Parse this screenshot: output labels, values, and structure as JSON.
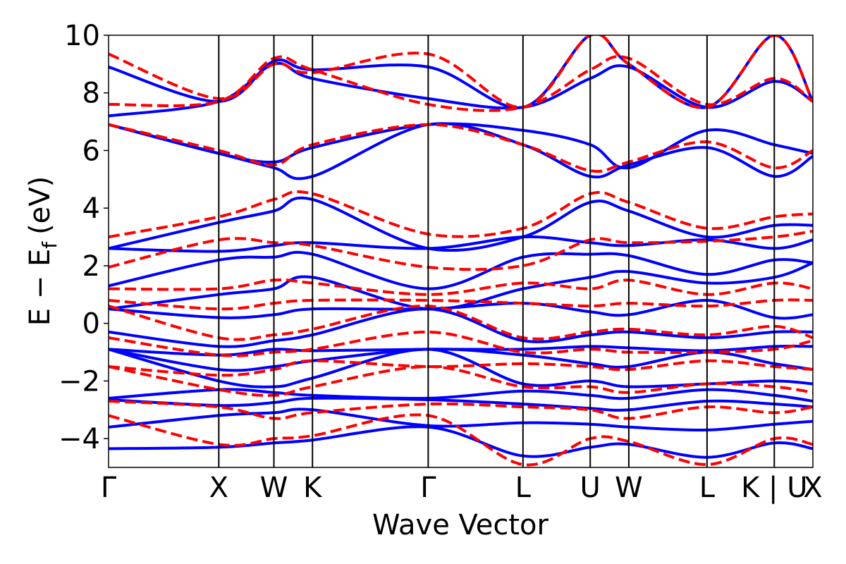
{
  "chart_data": {
    "type": "line",
    "xlabel": "Wave Vector",
    "ylabel": "E − E",
    "ylabel_sub": "f",
    "ylabel_unit": "(eV)",
    "ylim": [
      -5,
      10
    ],
    "yticks": [
      10,
      8,
      6,
      4,
      2,
      0,
      -2,
      -4
    ],
    "ytick_labels": [
      "10",
      "8",
      "6",
      "4",
      "2",
      "0",
      "−2",
      "−4"
    ],
    "kpath": [
      {
        "label": "Γ",
        "x": 0
      },
      {
        "label": "X",
        "x": 1.0
      },
      {
        "label": "W",
        "x": 1.5
      },
      {
        "label": "K",
        "x": 1.85
      },
      {
        "label": "Γ",
        "x": 2.9
      },
      {
        "label": "L",
        "x": 3.76
      },
      {
        "label": "U",
        "x": 4.37
      },
      {
        "label": "W",
        "x": 4.72
      },
      {
        "label": "L",
        "x": 5.43
      },
      {
        "label": "K | U",
        "x": 6.04
      },
      {
        "label": "X",
        "x": 6.39
      }
    ],
    "grid": false,
    "series": [
      {
        "style": "solid",
        "color": "#0000ff",
        "bands": [
          {
            "k": [
              0,
              1.0,
              1.5,
              1.85,
              2.9,
              3.76,
              4.37,
              4.72,
              5.43,
              6.04,
              6.39
            ],
            "E": [
              -4.35,
              -4.3,
              -4.15,
              -4.05,
              -3.6,
              -4.6,
              -4.3,
              -4.2,
              -4.65,
              -4.15,
              -4.35
            ]
          },
          {
            "k": [
              0,
              1.0,
              1.5,
              1.85,
              2.9,
              3.76,
              4.37,
              4.72,
              5.43,
              6.04,
              6.39
            ],
            "E": [
              -3.6,
              -3.2,
              -3.1,
              -3.0,
              -3.55,
              -3.45,
              -3.5,
              -3.6,
              -3.7,
              -3.5,
              -3.4
            ]
          },
          {
            "k": [
              0,
              1.0,
              1.5,
              1.85,
              2.9,
              3.76,
              4.37,
              4.72,
              5.43,
              6.04,
              6.39
            ],
            "E": [
              -2.65,
              -2.85,
              -2.75,
              -2.6,
              -2.65,
              -2.8,
              -2.95,
              -3.0,
              -2.7,
              -2.8,
              -2.9
            ]
          },
          {
            "k": [
              0,
              1.0,
              1.5,
              1.85,
              2.9,
              3.76,
              4.37,
              4.72,
              5.43,
              6.04,
              6.39
            ],
            "E": [
              -2.6,
              -2.3,
              -2.4,
              -2.5,
              -2.6,
              -2.35,
              -2.5,
              -2.6,
              -2.3,
              -2.5,
              -2.7
            ]
          },
          {
            "k": [
              0,
              1.0,
              1.5,
              1.85,
              2.9,
              3.76,
              4.37,
              4.72,
              5.43,
              6.04,
              6.39
            ],
            "E": [
              -0.9,
              -2.0,
              -2.2,
              -1.9,
              -0.9,
              -2.1,
              -2.0,
              -2.2,
              -2.1,
              -2.0,
              -2.1
            ]
          },
          {
            "k": [
              0,
              1.0,
              1.5,
              1.85,
              2.9,
              3.76,
              4.37,
              4.72,
              5.43,
              6.04,
              6.39
            ],
            "E": [
              -0.9,
              -1.6,
              -1.5,
              -1.3,
              -0.9,
              -1.1,
              -1.4,
              -1.5,
              -1.0,
              -1.4,
              -1.6
            ]
          },
          {
            "k": [
              0,
              1.0,
              1.5,
              1.85,
              2.9,
              3.76,
              4.37,
              4.72,
              5.43,
              6.04,
              6.39
            ],
            "E": [
              -0.9,
              -1.1,
              -0.9,
              -0.95,
              -0.9,
              -0.9,
              -0.8,
              -0.85,
              -0.95,
              -0.8,
              -0.8
            ]
          },
          {
            "k": [
              0,
              1.0,
              1.5,
              1.85,
              2.9,
              3.76,
              4.37,
              4.72,
              5.43,
              6.04,
              6.39
            ],
            "E": [
              -0.3,
              -0.8,
              -0.6,
              -0.4,
              0.5,
              -0.6,
              -0.4,
              -0.3,
              -0.5,
              -0.3,
              -0.3
            ]
          },
          {
            "k": [
              0,
              1.0,
              1.5,
              1.85,
              2.9,
              3.76,
              4.37,
              4.72,
              5.43,
              6.04,
              6.39
            ],
            "E": [
              0.5,
              0.2,
              0.3,
              0.5,
              0.5,
              0.7,
              0.4,
              0.3,
              0.8,
              0.2,
              0.3
            ]
          },
          {
            "k": [
              0,
              1.0,
              1.5,
              1.85,
              2.9,
              3.76,
              4.37,
              4.72,
              5.43,
              6.04,
              6.39
            ],
            "E": [
              0.5,
              1.0,
              1.2,
              1.6,
              0.5,
              1.2,
              1.6,
              1.8,
              1.4,
              1.6,
              2.1
            ]
          },
          {
            "k": [
              0,
              1.0,
              1.5,
              1.85,
              2.9,
              3.76,
              4.37,
              4.72,
              5.43,
              6.04,
              6.39
            ],
            "E": [
              1.3,
              2.2,
              2.3,
              2.4,
              1.2,
              2.3,
              2.4,
              2.35,
              1.7,
              2.2,
              2.1
            ]
          },
          {
            "k": [
              0,
              1.0,
              1.5,
              1.85,
              2.9,
              3.76,
              4.37,
              4.72,
              5.43,
              6.04,
              6.39
            ],
            "E": [
              2.6,
              2.5,
              2.7,
              2.8,
              2.6,
              3.0,
              2.8,
              2.7,
              2.9,
              2.6,
              2.9
            ]
          },
          {
            "k": [
              0,
              1.0,
              1.5,
              1.85,
              2.9,
              3.76,
              4.37,
              4.72,
              5.43,
              6.04,
              6.39
            ],
            "E": [
              2.6,
              3.5,
              3.9,
              4.3,
              2.6,
              3.0,
              4.2,
              3.9,
              3.0,
              3.4,
              3.4
            ]
          },
          {
            "k": [
              0,
              1.0,
              1.5,
              1.85,
              2.9,
              3.76,
              4.37,
              4.72,
              5.43,
              6.04,
              6.39
            ],
            "E": [
              6.9,
              5.9,
              5.4,
              5.1,
              6.9,
              6.2,
              5.1,
              5.5,
              6.1,
              5.1,
              5.8
            ]
          },
          {
            "k": [
              0,
              1.0,
              1.5,
              1.85,
              2.9,
              3.76,
              4.37,
              4.72,
              5.43,
              6.04,
              6.39
            ],
            "E": [
              6.9,
              5.9,
              5.6,
              6.1,
              6.9,
              6.7,
              6.2,
              5.4,
              6.7,
              6.2,
              5.9
            ]
          },
          {
            "k": [
              0,
              1.0,
              1.5,
              1.85,
              2.9,
              3.76,
              4.37,
              4.72,
              5.43,
              6.04,
              6.39
            ],
            "E": [
              7.2,
              7.7,
              9.0,
              8.5,
              7.8,
              7.5,
              8.5,
              8.9,
              7.5,
              8.4,
              7.7
            ]
          },
          {
            "k": [
              0,
              1.0,
              1.5,
              1.85,
              2.9,
              3.76,
              4.37,
              4.72,
              5.43,
              6.04,
              6.39
            ],
            "E": [
              8.9,
              7.7,
              9.1,
              8.8,
              8.9,
              7.5,
              10.0,
              9.0,
              7.5,
              10.0,
              7.7
            ]
          }
        ]
      },
      {
        "style": "dashed",
        "color": "#ff0000",
        "bands": [
          {
            "k": [
              0,
              1.0,
              1.5,
              1.85,
              2.9,
              3.76,
              4.37,
              4.72,
              5.43,
              6.04,
              6.39
            ],
            "E": [
              -3.2,
              -4.2,
              -4.0,
              -3.9,
              -3.2,
              -4.9,
              -4.0,
              -4.1,
              -4.9,
              -4.0,
              -4.2
            ]
          },
          {
            "k": [
              0,
              1.0,
              1.5,
              1.85,
              2.9,
              3.76,
              4.37,
              4.72,
              5.43,
              6.04,
              6.39
            ],
            "E": [
              -2.7,
              -2.9,
              -3.3,
              -3.1,
              -2.8,
              -2.9,
              -3.0,
              -3.3,
              -2.9,
              -3.1,
              -2.9
            ]
          },
          {
            "k": [
              0,
              1.0,
              1.5,
              1.85,
              2.9,
              3.76,
              4.37,
              4.72,
              5.43,
              6.04,
              6.39
            ],
            "E": [
              -1.5,
              -2.3,
              -2.5,
              -2.2,
              -1.5,
              -2.2,
              -2.2,
              -2.4,
              -2.1,
              -2.2,
              -2.4
            ]
          },
          {
            "k": [
              0,
              1.0,
              1.5,
              1.85,
              2.9,
              3.76,
              4.37,
              4.72,
              5.43,
              6.04,
              6.39
            ],
            "E": [
              -1.5,
              -1.8,
              -1.6,
              -1.3,
              -1.5,
              -1.4,
              -1.5,
              -1.6,
              -1.3,
              -1.5,
              -1.6
            ]
          },
          {
            "k": [
              0,
              1.0,
              1.5,
              1.85,
              2.9,
              3.76,
              4.37,
              4.72,
              5.43,
              6.04,
              6.39
            ],
            "E": [
              -0.5,
              -1.1,
              -1.0,
              -0.9,
              -0.3,
              -1.0,
              -0.9,
              -1.0,
              -1.0,
              -0.9,
              -0.6
            ]
          },
          {
            "k": [
              0,
              1.0,
              1.5,
              1.85,
              2.9,
              3.76,
              4.37,
              4.72,
              5.43,
              6.04,
              6.39
            ],
            "E": [
              0.6,
              -0.5,
              -0.4,
              -0.2,
              0.6,
              -0.5,
              -0.3,
              -0.2,
              -0.4,
              -0.1,
              -0.5
            ]
          },
          {
            "k": [
              0,
              1.0,
              1.5,
              1.85,
              2.9,
              3.76,
              4.37,
              4.72,
              5.43,
              6.04,
              6.39
            ],
            "E": [
              0.8,
              0.5,
              0.7,
              0.8,
              0.8,
              0.7,
              0.6,
              0.7,
              0.6,
              0.8,
              0.8
            ]
          },
          {
            "k": [
              0,
              1.0,
              1.5,
              1.85,
              2.9,
              3.76,
              4.37,
              4.72,
              5.43,
              6.04,
              6.39
            ],
            "E": [
              1.2,
              1.2,
              1.5,
              1.4,
              1.0,
              1.4,
              1.2,
              1.5,
              1.0,
              1.4,
              1.2
            ]
          },
          {
            "k": [
              0,
              1.0,
              1.5,
              1.85,
              2.9,
              3.76,
              4.37,
              4.72,
              5.43,
              6.04,
              6.39
            ],
            "E": [
              1.95,
              2.9,
              2.8,
              2.7,
              1.95,
              2.0,
              2.9,
              2.8,
              2.85,
              3.0,
              3.2
            ]
          },
          {
            "k": [
              0,
              1.0,
              1.5,
              1.85,
              2.9,
              3.76,
              4.37,
              4.72,
              5.43,
              6.04,
              6.39
            ],
            "E": [
              3.0,
              3.7,
              4.3,
              4.5,
              3.1,
              3.3,
              4.5,
              4.2,
              3.3,
              3.7,
              3.8
            ]
          },
          {
            "k": [
              0,
              1.0,
              1.5,
              1.85,
              2.9,
              3.76,
              4.37,
              4.72,
              5.43,
              6.04,
              6.39
            ],
            "E": [
              6.9,
              6.0,
              5.5,
              6.2,
              6.9,
              6.2,
              5.3,
              5.6,
              6.3,
              5.4,
              6.0
            ]
          },
          {
            "k": [
              0,
              1.0,
              1.5,
              1.85,
              2.9,
              3.76,
              4.37,
              4.72,
              5.43,
              6.04,
              6.39
            ],
            "E": [
              7.6,
              7.7,
              9.2,
              8.8,
              7.6,
              7.5,
              8.8,
              9.2,
              7.6,
              8.5,
              7.7
            ]
          },
          {
            "k": [
              0,
              1.0,
              1.5,
              1.85,
              2.9,
              3.76,
              4.37,
              4.72,
              5.43,
              6.04,
              6.39
            ],
            "E": [
              9.35,
              7.8,
              9.0,
              8.7,
              9.35,
              7.5,
              10.0,
              9.0,
              7.5,
              10.0,
              7.7
            ]
          }
        ]
      }
    ]
  }
}
